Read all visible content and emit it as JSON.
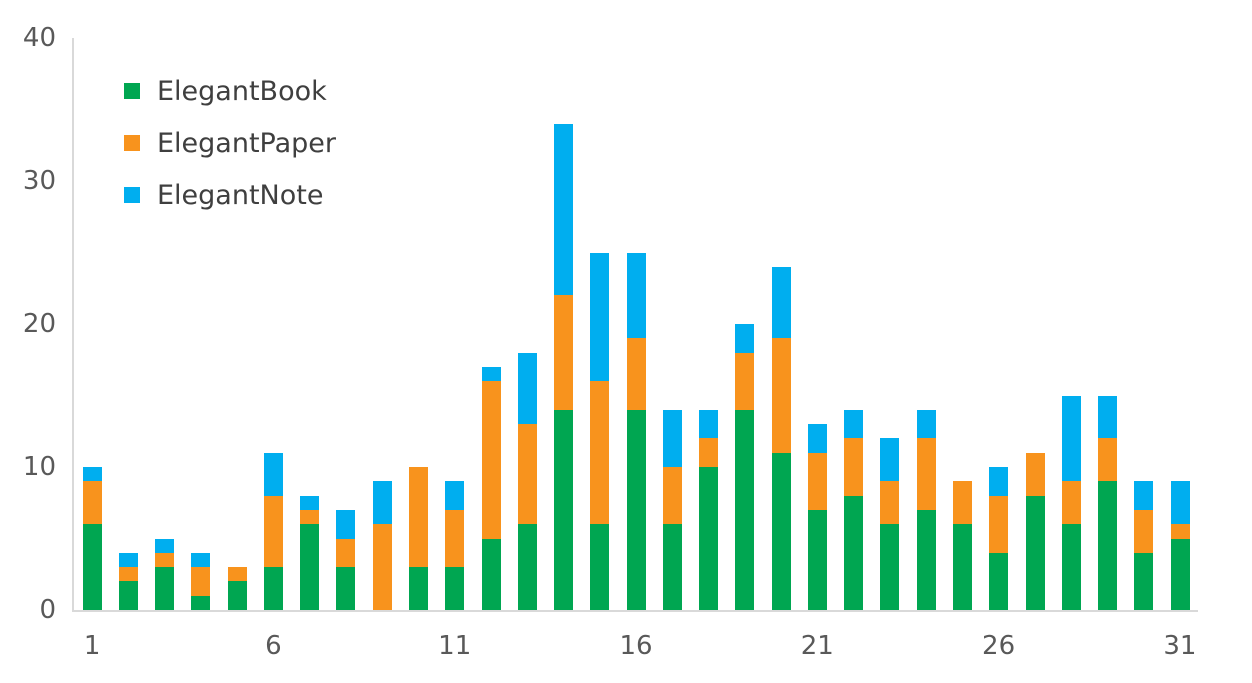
{
  "chart_data": {
    "type": "bar",
    "stacked": true,
    "title": "",
    "xlabel": "",
    "ylabel": "",
    "categories": [
      1,
      2,
      3,
      4,
      5,
      6,
      7,
      8,
      9,
      10,
      11,
      12,
      13,
      14,
      15,
      16,
      17,
      18,
      19,
      20,
      21,
      22,
      23,
      24,
      25,
      26,
      27,
      28,
      29,
      30,
      31
    ],
    "series": [
      {
        "name": "ElegantBook",
        "color": "#00A651",
        "values": [
          6,
          2,
          3,
          1,
          2,
          3,
          6,
          3,
          0,
          3,
          3,
          5,
          6,
          14,
          6,
          14,
          6,
          10,
          14,
          11,
          7,
          8,
          6,
          7,
          6,
          4,
          8,
          6,
          9,
          4,
          5
        ]
      },
      {
        "name": "ElegantPaper",
        "color": "#F8931D",
        "values": [
          3,
          1,
          1,
          2,
          1,
          5,
          1,
          2,
          6,
          7,
          4,
          11,
          7,
          8,
          10,
          5,
          4,
          2,
          4,
          8,
          4,
          4,
          3,
          5,
          3,
          4,
          3,
          3,
          3,
          3,
          1
        ]
      },
      {
        "name": "ElegantNote",
        "color": "#00AEEF",
        "values": [
          1,
          1,
          1,
          1,
          0,
          3,
          1,
          2,
          3,
          0,
          2,
          1,
          5,
          12,
          9,
          6,
          4,
          2,
          2,
          5,
          2,
          2,
          3,
          2,
          0,
          2,
          0,
          6,
          3,
          2,
          3
        ]
      }
    ],
    "totals": [
      10,
      4,
      5,
      4,
      3,
      11,
      8,
      7,
      9,
      10,
      9,
      17,
      18,
      34,
      25,
      25,
      14,
      14,
      20,
      24,
      13,
      14,
      12,
      14,
      9,
      10,
      11,
      15,
      15,
      9,
      9
    ],
    "ylim": [
      0,
      40
    ],
    "y_ticks": [
      0,
      10,
      20,
      30,
      40
    ],
    "x_ticks": [
      1,
      6,
      11,
      16,
      21,
      26,
      31
    ],
    "grid": false,
    "legend_position": "inside-top-left"
  },
  "colors": {
    "background": "#FFFFFF",
    "axis_line": "#D9D9D9",
    "tick_label": "#595959",
    "legend_label": "#3F3F3F"
  }
}
